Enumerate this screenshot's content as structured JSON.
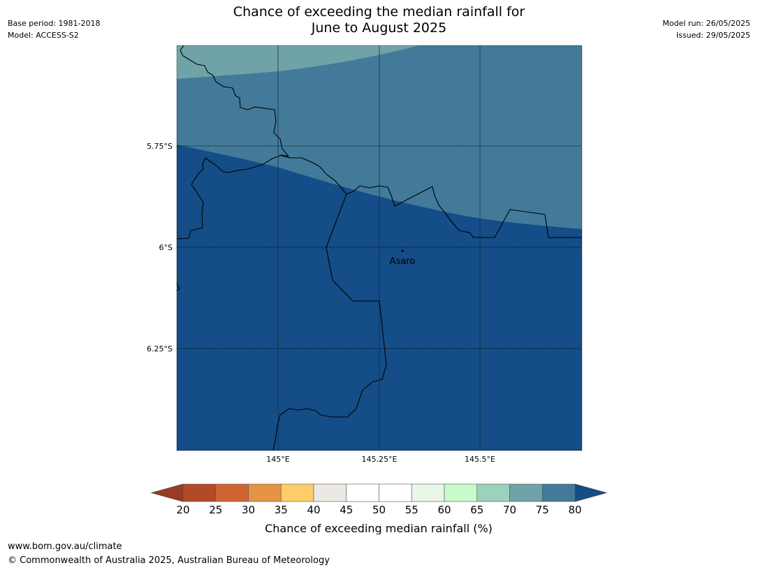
{
  "header": {
    "title_line1": "Chance of exceeding the median rainfall for",
    "title_line2": "June to August 2025",
    "base_period": "Base period: 1981-2018",
    "model": "Model: ACCESS-S2",
    "model_run": "Model run: 26/05/2025",
    "issued": "Issued: 29/05/2025"
  },
  "map": {
    "lat_ticks": [
      "5.75°S",
      "6°S",
      "6.25°S"
    ],
    "lon_ticks": [
      "145°E",
      "145.25°E",
      "145.5°E"
    ],
    "place_label": "Asaro",
    "colors": {
      "band_70_75": "#6fa3a7",
      "band_75_80": "#437a99",
      "band_above_80": "#144d87",
      "boundary": "#000000"
    }
  },
  "colorbar": {
    "tick_labels": [
      "20",
      "25",
      "30",
      "35",
      "40",
      "45",
      "50",
      "55",
      "60",
      "65",
      "70",
      "75",
      "80"
    ],
    "label": "Chance of exceeding median rainfall (%)",
    "colors": {
      "under": "#9a3b22",
      "bins": [
        "#b24a26",
        "#cf6432",
        "#e39446",
        "#fecc69",
        "#ece8e3",
        "#ffffff",
        "#ffffff",
        "#e8f6e8",
        "#c8fbc9",
        "#9dd1bb",
        "#6fa3a7",
        "#437a99"
      ],
      "over": "#144d87"
    }
  },
  "footer": {
    "url": "www.bom.gov.au/climate",
    "copyright": "© Commonwealth of Australia 2025, Australian Bureau of Meteorology"
  }
}
